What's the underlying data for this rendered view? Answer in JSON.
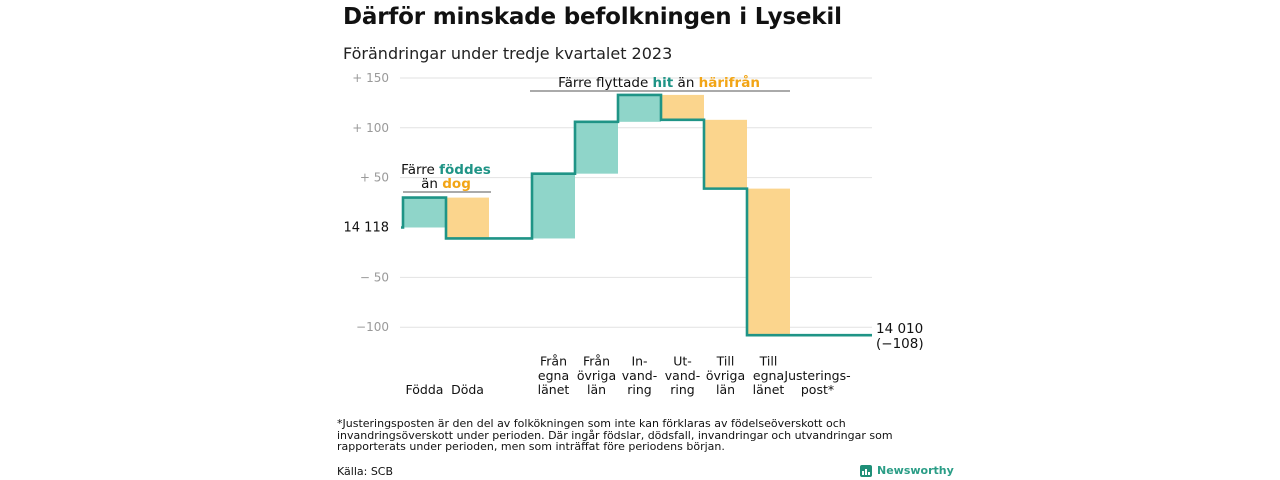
{
  "title": "Därför minskade befolkningen i Lysekil",
  "subtitle": "Förändringar under tredje kvartalet 2023",
  "chart_data": {
    "type": "waterfall",
    "baseline": 14118,
    "baseline_label": "14  118",
    "end_value": 14010,
    "end_label": "14 010",
    "end_change_label": "(−108)",
    "y_ticks": [
      {
        "value": 150,
        "label": "+  150"
      },
      {
        "value": 100,
        "label": "+  100"
      },
      {
        "value": 50,
        "label": "+   50"
      },
      {
        "value": -50,
        "label": "−   50"
      },
      {
        "value": -100,
        "label": "−100"
      }
    ],
    "ylim": [
      -120,
      155
    ],
    "steps": [
      {
        "label_lines": [
          "Födda"
        ],
        "value": 30,
        "kind": "in"
      },
      {
        "label_lines": [
          "Döda"
        ],
        "value": -41,
        "kind": "out"
      },
      {
        "label_lines": [
          "",
          ""
        ],
        "value": 0,
        "kind": "none"
      },
      {
        "label_lines": [
          "Från",
          "egna",
          "länet"
        ],
        "value": 65,
        "kind": "in"
      },
      {
        "label_lines": [
          "Från",
          "övriga",
          "län"
        ],
        "value": 52,
        "kind": "in"
      },
      {
        "label_lines": [
          "In-",
          "vand-",
          "ring"
        ],
        "value": 27,
        "kind": "in"
      },
      {
        "label_lines": [
          "Ut-",
          "vand-",
          "ring"
        ],
        "value": -25,
        "kind": "out"
      },
      {
        "label_lines": [
          "Till",
          "övriga",
          "län"
        ],
        "value": -69,
        "kind": "out"
      },
      {
        "label_lines": [
          "Till",
          "egna",
          "länet"
        ],
        "value": -147,
        "kind": "out"
      },
      {
        "label_lines": [
          "Justerings-",
          "post*"
        ],
        "value": 0,
        "kind": "adjust"
      }
    ],
    "annotations": {
      "births": {
        "line1_pre": "Färre ",
        "line1_hl": "föddes",
        "line2_pre": "än ",
        "line2_hl": "dog"
      },
      "migration": {
        "pre": "Färre flyttade ",
        "hl1": "hit",
        "mid": "  än ",
        "hl2": "härifrån"
      }
    },
    "colors": {
      "in_fill": "#8fd5c9",
      "out_fill": "#fbd58d",
      "line": "#1f9486",
      "in_text": "#1f9486",
      "out_text": "#f2a516",
      "grid": "#e2e2e2"
    }
  },
  "footnote": "*Justeringsposten är den del av folkökningen som inte kan förklaras av födelseöverskott och invandringsöverskott under perioden. Där ingår födslar, dödsfall, invandringar och utvandringar som rapporterats under perioden, men som inträffat före periodens början.",
  "source": "Källa: SCB",
  "brand": "Newsworthy"
}
